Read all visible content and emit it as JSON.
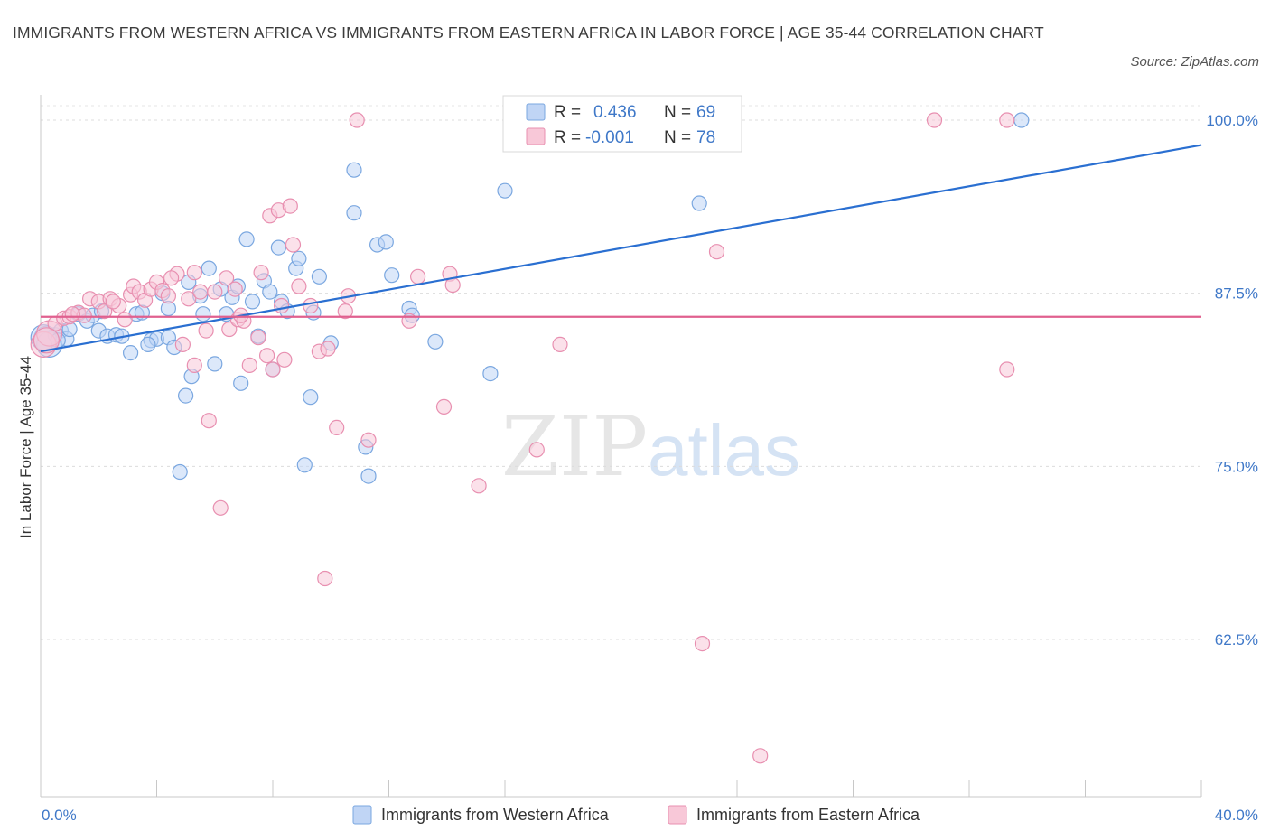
{
  "title": "IMMIGRANTS FROM WESTERN AFRICA VS IMMIGRANTS FROM EASTERN AFRICA IN LABOR FORCE | AGE 35-44 CORRELATION CHART",
  "source": "Source: ZipAtlas.com",
  "watermark": {
    "zip": "ZIP",
    "atlas": "atlas"
  },
  "legend": {
    "r_label": "R =",
    "n_label": "N =",
    "rows": [
      {
        "r": "0.436",
        "n": "69",
        "color": "#7aa7e0",
        "fill": "#c0d5f5"
      },
      {
        "r": "-0.001",
        "n": "78",
        "color": "#e88fb0",
        "fill": "#f8c8d8"
      }
    ]
  },
  "chart_data": {
    "type": "scatter",
    "xlabel": "",
    "ylabel": "In Labor Force | Age 35-44",
    "xlim": [
      0,
      40
    ],
    "ylim": [
      51,
      101
    ],
    "x_tick_labels": [
      "0.0%",
      "40.0%"
    ],
    "y_ticks": [
      62.5,
      75.0,
      87.5,
      100.0
    ],
    "y_tick_labels": [
      "62.5%",
      "75.0%",
      "87.5%",
      "100.0%"
    ],
    "grid": "horizontal dashed",
    "legend_position": "bottom",
    "series": [
      {
        "name": "Immigrants from Western Africa",
        "color": "#7aa7e0",
        "fill": "#c0d5f5",
        "trend": {
          "x0": 0,
          "y0": 83.3,
          "x1": 40,
          "y1": 98.2,
          "color": "#2a6fd1"
        },
        "points": [
          [
            0.2,
            84.2
          ],
          [
            0.3,
            83.8
          ],
          [
            0.5,
            84.5
          ],
          [
            0.7,
            84.8
          ],
          [
            0.9,
            84.2
          ],
          [
            1.0,
            84.9
          ],
          [
            1.3,
            86.0
          ],
          [
            1.6,
            85.5
          ],
          [
            1.8,
            85.9
          ],
          [
            2.0,
            84.8
          ],
          [
            2.3,
            84.4
          ],
          [
            2.6,
            84.5
          ],
          [
            2.8,
            84.4
          ],
          [
            3.1,
            83.2
          ],
          [
            3.3,
            86.0
          ],
          [
            3.5,
            86.1
          ],
          [
            3.8,
            84.1
          ],
          [
            4.0,
            84.2
          ],
          [
            4.2,
            87.5
          ],
          [
            4.4,
            86.4
          ],
          [
            4.4,
            84.3
          ],
          [
            4.6,
            83.6
          ],
          [
            4.8,
            74.6
          ],
          [
            5.0,
            80.1
          ],
          [
            5.1,
            88.3
          ],
          [
            5.2,
            81.5
          ],
          [
            5.5,
            87.3
          ],
          [
            5.6,
            86.0
          ],
          [
            5.8,
            89.3
          ],
          [
            6.0,
            82.4
          ],
          [
            6.2,
            87.8
          ],
          [
            6.4,
            86.0
          ],
          [
            6.6,
            87.2
          ],
          [
            6.8,
            88.0
          ],
          [
            6.9,
            81.0
          ],
          [
            7.1,
            91.4
          ],
          [
            7.3,
            86.9
          ],
          [
            7.5,
            84.4
          ],
          [
            7.7,
            88.4
          ],
          [
            7.9,
            87.6
          ],
          [
            8.0,
            82.0
          ],
          [
            8.2,
            90.8
          ],
          [
            8.3,
            86.9
          ],
          [
            8.5,
            86.2
          ],
          [
            8.8,
            89.3
          ],
          [
            8.9,
            90.0
          ],
          [
            9.1,
            75.1
          ],
          [
            9.3,
            80.0
          ],
          [
            9.4,
            86.1
          ],
          [
            9.6,
            88.7
          ],
          [
            10.0,
            83.9
          ],
          [
            10.8,
            96.4
          ],
          [
            10.8,
            93.3
          ],
          [
            11.2,
            76.4
          ],
          [
            11.3,
            74.3
          ],
          [
            11.6,
            91.0
          ],
          [
            11.9,
            91.2
          ],
          [
            12.1,
            88.8
          ],
          [
            12.7,
            86.4
          ],
          [
            12.8,
            85.9
          ],
          [
            13.6,
            84.0
          ],
          [
            15.5,
            81.7
          ],
          [
            16.0,
            94.9
          ],
          [
            22.7,
            94.0
          ],
          [
            33.8,
            100.0
          ],
          [
            0.1,
            84.3
          ],
          [
            0.6,
            84.1
          ],
          [
            2.1,
            86.2
          ],
          [
            3.7,
            83.8
          ]
        ]
      },
      {
        "name": "Immigrants from Eastern Africa",
        "color": "#e88fb0",
        "fill": "#f8c8d8",
        "trend": {
          "x0": 0,
          "y0": 85.8,
          "x1": 40,
          "y1": 85.8,
          "color": "#e0608f"
        },
        "points": [
          [
            0.1,
            83.8
          ],
          [
            0.3,
            84.6
          ],
          [
            0.5,
            85.3
          ],
          [
            0.8,
            85.7
          ],
          [
            1.0,
            85.8
          ],
          [
            1.3,
            86.1
          ],
          [
            1.5,
            85.9
          ],
          [
            1.7,
            87.1
          ],
          [
            2.0,
            86.9
          ],
          [
            2.2,
            86.2
          ],
          [
            2.4,
            87.1
          ],
          [
            2.7,
            86.6
          ],
          [
            2.9,
            85.6
          ],
          [
            3.1,
            87.4
          ],
          [
            3.2,
            88.0
          ],
          [
            3.4,
            87.6
          ],
          [
            3.6,
            87.0
          ],
          [
            3.8,
            87.8
          ],
          [
            4.0,
            88.3
          ],
          [
            4.2,
            87.7
          ],
          [
            4.4,
            87.3
          ],
          [
            4.7,
            88.9
          ],
          [
            4.9,
            83.8
          ],
          [
            5.1,
            87.1
          ],
          [
            5.3,
            82.3
          ],
          [
            5.3,
            89.0
          ],
          [
            5.5,
            87.6
          ],
          [
            5.7,
            84.8
          ],
          [
            5.8,
            78.3
          ],
          [
            6.0,
            87.6
          ],
          [
            6.2,
            72.0
          ],
          [
            6.4,
            88.6
          ],
          [
            6.5,
            84.9
          ],
          [
            6.7,
            87.8
          ],
          [
            6.8,
            85.6
          ],
          [
            7.0,
            85.5
          ],
          [
            7.2,
            82.3
          ],
          [
            7.5,
            84.3
          ],
          [
            7.6,
            89.0
          ],
          [
            7.8,
            83.0
          ],
          [
            7.9,
            93.1
          ],
          [
            8.0,
            82.0
          ],
          [
            8.2,
            93.5
          ],
          [
            8.3,
            86.6
          ],
          [
            8.4,
            82.7
          ],
          [
            8.6,
            93.8
          ],
          [
            8.7,
            91.0
          ],
          [
            8.9,
            88.0
          ],
          [
            9.3,
            86.6
          ],
          [
            9.6,
            83.3
          ],
          [
            9.8,
            66.9
          ],
          [
            9.9,
            83.5
          ],
          [
            10.2,
            77.8
          ],
          [
            10.5,
            86.2
          ],
          [
            10.6,
            87.3
          ],
          [
            10.9,
            100.0
          ],
          [
            11.3,
            76.9
          ],
          [
            12.7,
            85.5
          ],
          [
            13.0,
            88.7
          ],
          [
            13.9,
            79.3
          ],
          [
            14.1,
            88.9
          ],
          [
            14.2,
            88.1
          ],
          [
            15.1,
            73.6
          ],
          [
            17.1,
            76.2
          ],
          [
            17.9,
            83.8
          ],
          [
            22.8,
            62.2
          ],
          [
            23.3,
            90.5
          ],
          [
            24.8,
            54.1
          ],
          [
            30.8,
            100.0
          ],
          [
            33.3,
            100.0
          ],
          [
            33.3,
            82.0
          ],
          [
            16.4,
            100.0
          ],
          [
            23.4,
            100.0
          ],
          [
            0.2,
            84.1
          ],
          [
            1.1,
            86.0
          ],
          [
            2.5,
            86.9
          ],
          [
            4.5,
            88.6
          ],
          [
            6.9,
            85.9
          ]
        ]
      }
    ]
  }
}
